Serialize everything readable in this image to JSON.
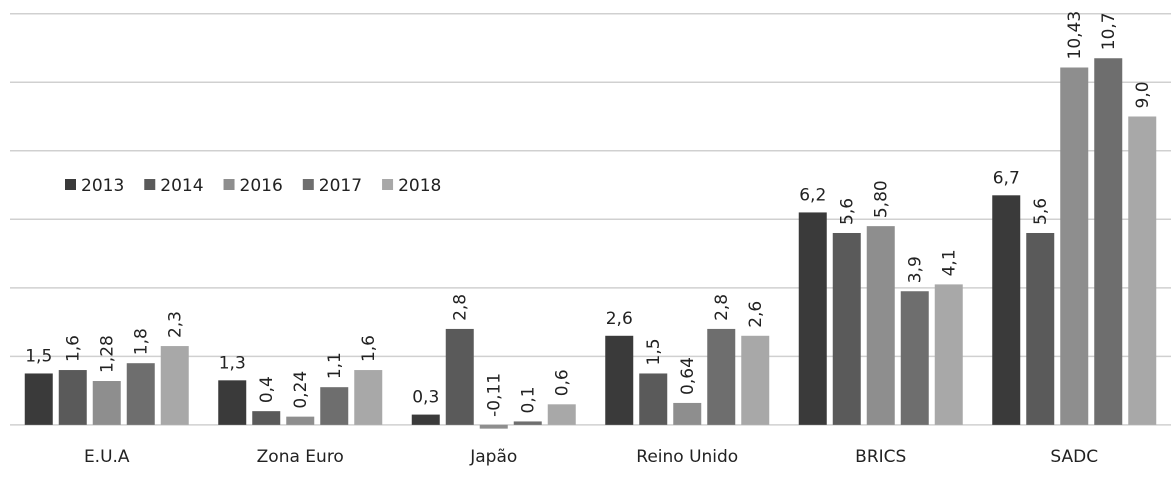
{
  "chart_data": {
    "type": "bar",
    "categories": [
      "E.U.A",
      "Zona Euro",
      "Japão",
      "Reino Unido",
      "BRICS",
      "SADC"
    ],
    "series": [
      {
        "name": "2013",
        "color": "#3a3a3a",
        "values": [
          1.5,
          1.3,
          0.3,
          2.6,
          6.2,
          6.7
        ],
        "value_labels": [
          "1,5",
          "1,3",
          "0,3",
          "2,6",
          "6,2",
          "6,7"
        ]
      },
      {
        "name": "2014",
        "color": "#5a5a5a",
        "values": [
          1.6,
          0.4,
          2.8,
          1.5,
          5.6,
          5.6
        ],
        "value_labels": [
          "1,6",
          "0,4",
          "2,8",
          "1,5",
          "5,6",
          "5,6"
        ]
      },
      {
        "name": "2016",
        "color": "#8e8e8e",
        "values": [
          1.28,
          0.24,
          -0.11,
          0.64,
          5.8,
          10.43
        ],
        "value_labels": [
          "1,28",
          "0,24",
          "-0,11",
          "0,64",
          "5,80",
          "10,43"
        ]
      },
      {
        "name": "2017",
        "color": "#6e6e6e",
        "values": [
          1.8,
          1.1,
          0.1,
          2.8,
          3.9,
          10.7
        ],
        "value_labels": [
          "1,8",
          "1,1",
          "0,1",
          "2,8",
          "3,9",
          "10,7"
        ]
      },
      {
        "name": "2018",
        "color": "#a8a8a8",
        "values": [
          2.3,
          1.6,
          0.6,
          2.6,
          4.1,
          9.0
        ],
        "value_labels": [
          "2,3",
          "1,6",
          "0,6",
          "2,6",
          "4,1",
          "9,0"
        ]
      }
    ],
    "ylim": [
      -0.5,
      12.4
    ],
    "yticks": [
      0,
      2,
      4,
      6,
      8,
      10,
      12
    ],
    "grid": true,
    "legend": "upper left"
  }
}
